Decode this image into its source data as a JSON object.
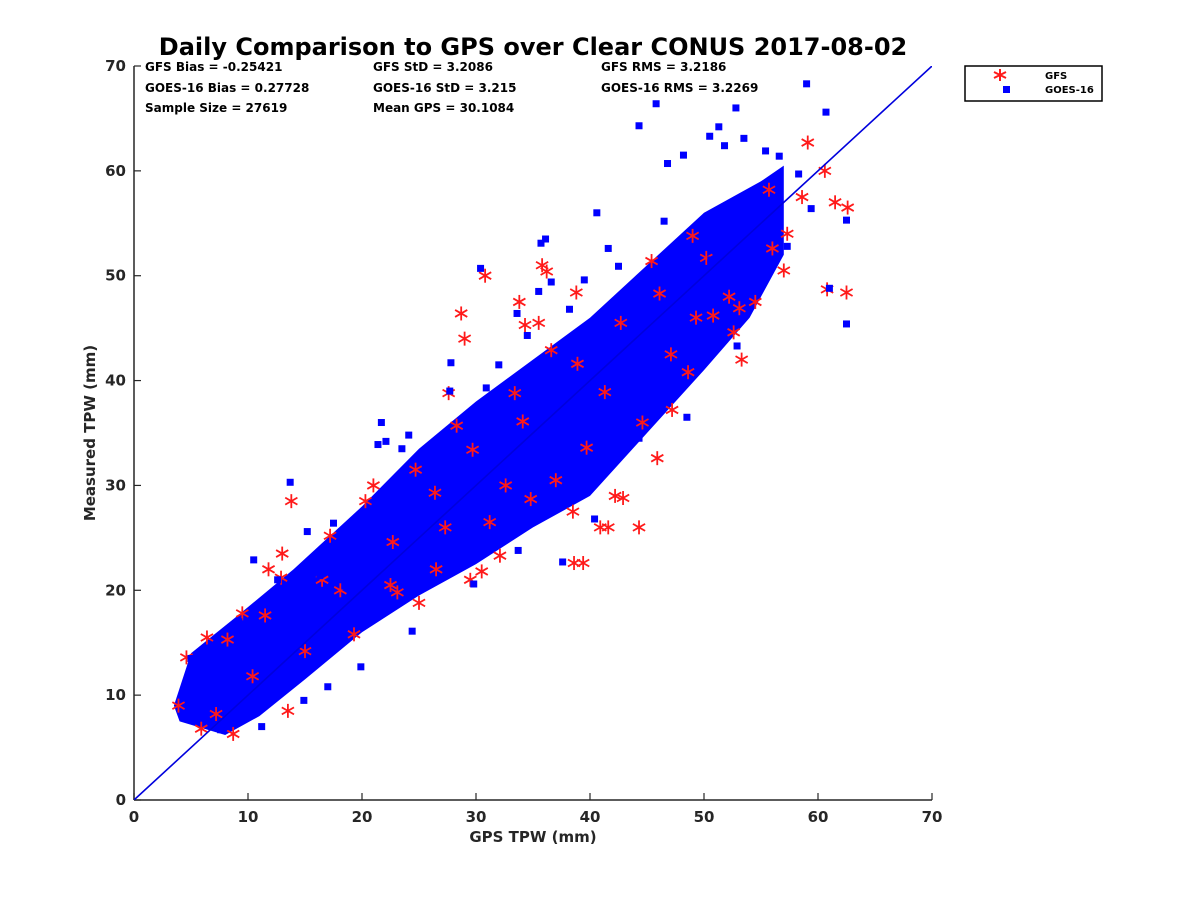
{
  "chart_data": {
    "type": "scatter",
    "title": "Daily Comparison to GPS over Clear CONUS 2017-08-02",
    "xlabel": "GPS TPW (mm)",
    "ylabel": "Measured TPW (mm)",
    "xlim": [
      0,
      70
    ],
    "ylim": [
      0,
      70
    ],
    "xticks": [
      "0",
      "10",
      "20",
      "30",
      "40",
      "50",
      "60",
      "70"
    ],
    "yticks": [
      "0",
      "10",
      "20",
      "30",
      "40",
      "50",
      "60",
      "70"
    ],
    "grid": false,
    "legend_position": "outside-top-right",
    "reference_line": {
      "name": "1:1 line",
      "x": [
        0,
        70
      ],
      "y": [
        0,
        70
      ],
      "color": "#0000dd"
    },
    "stats": [
      "GFS Bias = -0.25421",
      "GFS StD = 3.2086",
      "GFS RMS = 3.2186",
      "GOES-16 Bias = 0.27728",
      "GOES-16 StD = 3.215",
      "GOES-16 RMS = 3.2269",
      "Sample Size = 27619",
      "Mean GPS = 30.1084"
    ],
    "series": [
      {
        "name": "GFS",
        "marker": "asterisk",
        "color": "#ff1a1a",
        "points": [
          [
            4.6,
            13.6
          ],
          [
            3.9,
            9.0
          ],
          [
            5.9,
            6.8
          ],
          [
            8.7,
            6.3
          ],
          [
            6.4,
            15.5
          ],
          [
            8.2,
            15.3
          ],
          [
            9.5,
            17.8
          ],
          [
            11.8,
            22.0
          ],
          [
            13.0,
            23.5
          ],
          [
            13.5,
            8.5
          ],
          [
            13.8,
            28.5
          ],
          [
            12.9,
            21.2
          ],
          [
            16.5,
            21.0
          ],
          [
            19.3,
            15.8
          ],
          [
            20.3,
            28.5
          ],
          [
            21.0,
            30.0
          ],
          [
            22.5,
            20.5
          ],
          [
            25.0,
            18.8
          ],
          [
            26.5,
            22.0
          ],
          [
            27.6,
            38.8
          ],
          [
            29.5,
            21.0
          ],
          [
            30.5,
            21.8
          ],
          [
            32.1,
            23.3
          ],
          [
            28.7,
            46.4
          ],
          [
            29.0,
            44.0
          ],
          [
            30.8,
            50.0
          ],
          [
            33.8,
            47.5
          ],
          [
            34.3,
            45.3
          ],
          [
            35.5,
            45.5
          ],
          [
            35.8,
            51.0
          ],
          [
            36.2,
            50.4
          ],
          [
            38.8,
            48.4
          ],
          [
            37.0,
            30.5
          ],
          [
            38.5,
            27.5
          ],
          [
            38.6,
            22.6
          ],
          [
            39.4,
            22.6
          ],
          [
            40.9,
            26.0
          ],
          [
            41.6,
            26.0
          ],
          [
            42.2,
            29.0
          ],
          [
            42.9,
            28.8
          ],
          [
            44.3,
            26.0
          ],
          [
            45.9,
            32.6
          ],
          [
            47.2,
            37.2
          ],
          [
            48.6,
            40.8
          ],
          [
            49.3,
            46.0
          ],
          [
            50.8,
            46.2
          ],
          [
            52.2,
            48.0
          ],
          [
            52.6,
            44.6
          ],
          [
            53.3,
            42.0
          ],
          [
            54.5,
            47.5
          ],
          [
            56.0,
            52.6
          ],
          [
            57.0,
            50.5
          ],
          [
            57.3,
            54.0
          ],
          [
            58.6,
            57.5
          ],
          [
            59.1,
            62.7
          ],
          [
            60.6,
            60.0
          ],
          [
            60.8,
            48.7
          ],
          [
            61.5,
            57.0
          ],
          [
            62.6,
            56.5
          ],
          [
            62.5,
            48.4
          ],
          [
            24.7,
            31.5
          ],
          [
            27.3,
            26.0
          ],
          [
            34.8,
            28.7
          ],
          [
            41.3,
            38.9
          ],
          [
            44.6,
            36.0
          ],
          [
            47.1,
            42.5
          ],
          [
            53.1,
            46.9
          ],
          [
            55.7,
            58.2
          ],
          [
            33.4,
            38.8
          ],
          [
            36.6,
            42.9
          ],
          [
            31.2,
            26.5
          ],
          [
            10.4,
            11.8
          ],
          [
            15.0,
            14.2
          ],
          [
            18.1,
            20.0
          ],
          [
            22.7,
            24.6
          ],
          [
            26.4,
            29.3
          ],
          [
            29.7,
            33.4
          ],
          [
            34.1,
            36.1
          ],
          [
            38.9,
            41.6
          ],
          [
            42.7,
            45.5
          ],
          [
            46.1,
            48.3
          ],
          [
            50.2,
            51.7
          ],
          [
            7.2,
            8.2
          ],
          [
            11.5,
            17.6
          ],
          [
            17.2,
            25.2
          ],
          [
            23.1,
            19.8
          ],
          [
            28.3,
            35.7
          ],
          [
            32.6,
            30.0
          ],
          [
            39.7,
            33.6
          ],
          [
            45.4,
            51.4
          ],
          [
            49.0,
            53.8
          ]
        ]
      },
      {
        "name": "GOES-16",
        "marker": "square",
        "color": "#0000ff",
        "points": [
          [
            5.0,
            13.5
          ],
          [
            6.5,
            9.0
          ],
          [
            8.0,
            7.0
          ],
          [
            9.2,
            17.0
          ],
          [
            10.5,
            22.9
          ],
          [
            12.6,
            21.0
          ],
          [
            13.7,
            30.3
          ],
          [
            15.2,
            25.6
          ],
          [
            17.5,
            26.4
          ],
          [
            17.0,
            10.8
          ],
          [
            21.4,
            33.9
          ],
          [
            23.5,
            33.5
          ],
          [
            21.7,
            36.0
          ],
          [
            22.1,
            34.2
          ],
          [
            24.1,
            34.8
          ],
          [
            26.0,
            26.6
          ],
          [
            27.4,
            28.9
          ],
          [
            27.7,
            39.0
          ],
          [
            27.8,
            41.7
          ],
          [
            30.4,
            50.7
          ],
          [
            32.0,
            41.5
          ],
          [
            33.6,
            46.4
          ],
          [
            35.5,
            48.5
          ],
          [
            35.7,
            53.1
          ],
          [
            36.1,
            53.5
          ],
          [
            36.6,
            49.4
          ],
          [
            39.5,
            49.6
          ],
          [
            40.6,
            56.0
          ],
          [
            41.6,
            52.6
          ],
          [
            44.3,
            64.3
          ],
          [
            45.8,
            66.4
          ],
          [
            46.8,
            60.7
          ],
          [
            48.2,
            61.5
          ],
          [
            50.5,
            63.3
          ],
          [
            51.3,
            64.2
          ],
          [
            51.8,
            62.4
          ],
          [
            52.8,
            66.0
          ],
          [
            53.5,
            63.1
          ],
          [
            55.4,
            61.9
          ],
          [
            56.6,
            61.4
          ],
          [
            58.3,
            59.7
          ],
          [
            59.0,
            68.3
          ],
          [
            60.7,
            65.6
          ],
          [
            59.4,
            56.4
          ],
          [
            61.0,
            48.8
          ],
          [
            62.5,
            45.4
          ],
          [
            62.5,
            55.3
          ],
          [
            57.3,
            52.8
          ],
          [
            52.9,
            43.3
          ],
          [
            48.5,
            36.5
          ],
          [
            44.3,
            34.5
          ],
          [
            40.4,
            26.8
          ],
          [
            37.6,
            22.7
          ],
          [
            33.7,
            23.8
          ],
          [
            29.8,
            20.6
          ],
          [
            24.4,
            16.1
          ],
          [
            19.9,
            12.7
          ],
          [
            14.9,
            9.5
          ],
          [
            11.2,
            7.0
          ],
          [
            7.6,
            6.7
          ],
          [
            9.8,
            13.6
          ],
          [
            14.2,
            17.0
          ],
          [
            18.5,
            20.4
          ],
          [
            22.3,
            23.9
          ],
          [
            25.8,
            27.3
          ],
          [
            29.2,
            30.5
          ],
          [
            32.7,
            33.8
          ],
          [
            36.3,
            37.4
          ],
          [
            39.9,
            41.0
          ],
          [
            43.6,
            44.7
          ],
          [
            47.3,
            48.2
          ],
          [
            50.6,
            51.5
          ],
          [
            53.8,
            54.6
          ],
          [
            26.1,
            33.4
          ],
          [
            30.9,
            39.3
          ],
          [
            34.5,
            44.3
          ],
          [
            38.2,
            46.8
          ],
          [
            42.5,
            50.9
          ],
          [
            46.5,
            55.2
          ],
          [
            30.0,
            25.8
          ],
          [
            34.3,
            29.7
          ],
          [
            38.9,
            34.4
          ],
          [
            42.8,
            38.2
          ],
          [
            46.9,
            43.6
          ],
          [
            16.3,
            21.4
          ],
          [
            20.8,
            26.1
          ],
          [
            25.3,
            30.6
          ],
          [
            12.3,
            12.7
          ],
          [
            17.4,
            17.8
          ],
          [
            21.9,
            21.5
          ]
        ]
      }
    ]
  }
}
